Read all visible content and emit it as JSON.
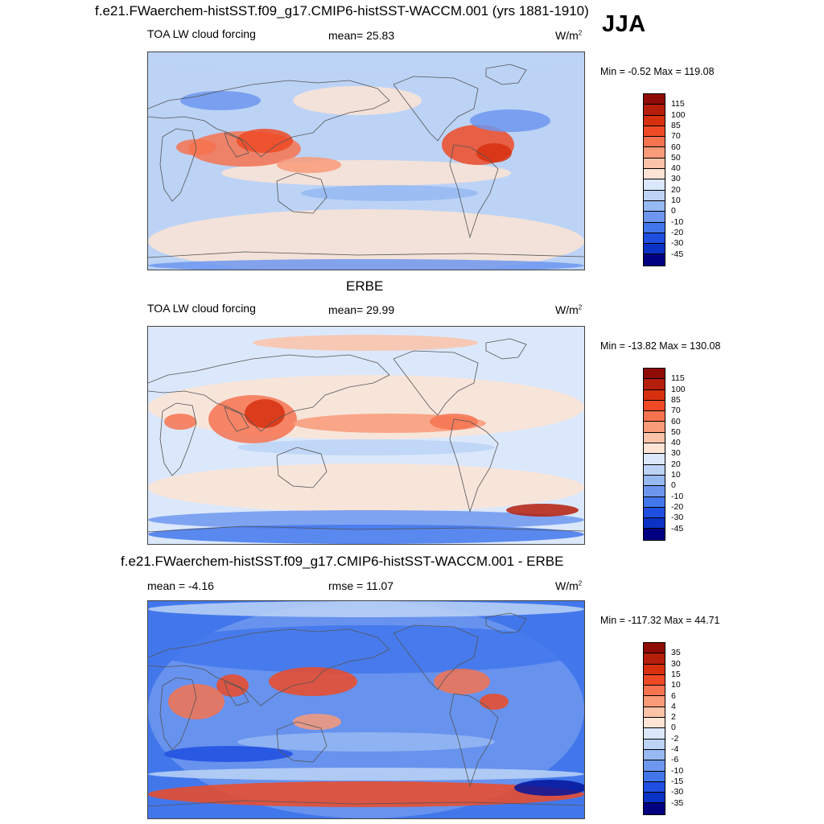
{
  "figure": {
    "main_title": "f.e21.FWaerchem-histSST.f09_g17.CMIP6-histSST-WACCM.001 (yrs 1881-1910)",
    "season": "JJA",
    "panel2_title": "ERBE",
    "panel3_title": "f.e21.FWaerchem-histSST.f09_g17.CMIP6-histSST-WACCM.001 - ERBE"
  },
  "colors": {
    "pos": [
      "#fde4d4",
      "#fbc3a8",
      "#f99a78",
      "#f67350",
      "#ef4a25",
      "#d6300f",
      "#b51e0a",
      "#8e0c05"
    ],
    "neg": [
      "#dbe8fb",
      "#bcd3f6",
      "#97b9f2",
      "#6d97ee",
      "#4277ec",
      "#1f4fe0",
      "#0a32c4",
      "#04149b",
      "#000080"
    ],
    "land": "#555555"
  },
  "chart_data": [
    {
      "type": "heatmap",
      "variable": "TOA LW cloud forcing",
      "mean_text": "mean=  25.83",
      "units_base": "W/m",
      "units_sup": "2",
      "minmax_text": "Min =  -0.52 Max = 119.08",
      "min": -0.52,
      "max": 119.08,
      "mean": 25.83,
      "colorbar_levels": [
        "115",
        "100",
        "85",
        "70",
        "60",
        "50",
        "40",
        "30",
        "20",
        "10",
        "0",
        "-10",
        "-20",
        "-30",
        "-45"
      ]
    },
    {
      "type": "heatmap",
      "variable": "TOA LW cloud forcing",
      "mean_text": "mean=  29.99",
      "units_base": "W/m",
      "units_sup": "2",
      "minmax_text": "Min = -13.82 Max = 130.08",
      "min": -13.82,
      "max": 130.08,
      "mean": 29.99,
      "colorbar_levels": [
        "115",
        "100",
        "85",
        "70",
        "60",
        "50",
        "40",
        "30",
        "20",
        "10",
        "0",
        "-10",
        "-20",
        "-30",
        "-45"
      ]
    },
    {
      "type": "heatmap",
      "variable": "",
      "mean_text": "mean =  -4.16",
      "rmse_text": "rmse =  11.07",
      "units_base": "W/m",
      "units_sup": "2",
      "minmax_text": "Min = -117.32 Max =  44.71",
      "min": -117.32,
      "max": 44.71,
      "mean": -4.16,
      "rmse": 11.07,
      "colorbar_levels": [
        "35",
        "30",
        "15",
        "10",
        "6",
        "4",
        "2",
        "0",
        "-2",
        "-4",
        "-6",
        "-10",
        "-15",
        "-30",
        "-35"
      ]
    }
  ]
}
